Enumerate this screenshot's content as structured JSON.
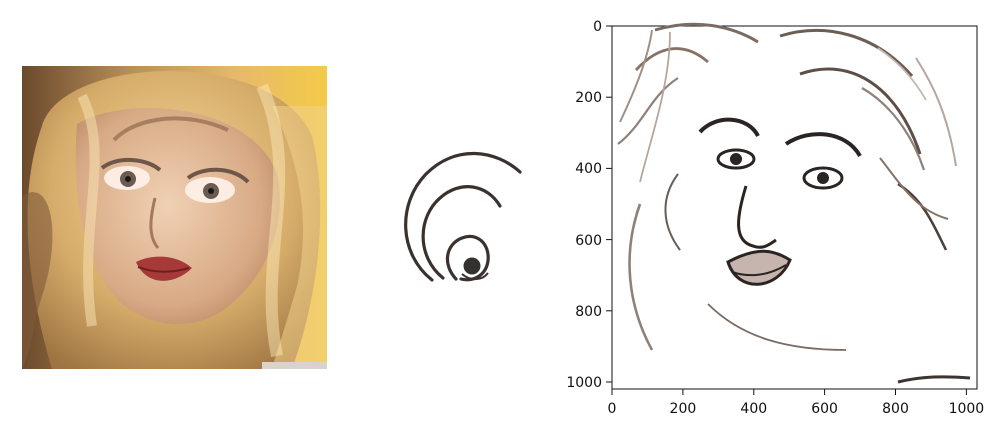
{
  "panels": {
    "original_photo": {
      "kind": "portrait-photo"
    },
    "style_icon": {
      "kind": "swirl-logo"
    },
    "sketch_plot": {
      "x_ticks": [
        "0",
        "200",
        "400",
        "600",
        "800",
        "1000"
      ],
      "y_ticks": [
        "0",
        "200",
        "400",
        "600",
        "800",
        "1000"
      ],
      "x_range": [
        0,
        1030
      ],
      "y_range": [
        0,
        1020
      ],
      "colors": {
        "axis": "#111111",
        "sketch_ink": "#2a2522",
        "sketch_shadow": "#8e8178",
        "lip_fill": "#c6b5ae"
      }
    }
  }
}
